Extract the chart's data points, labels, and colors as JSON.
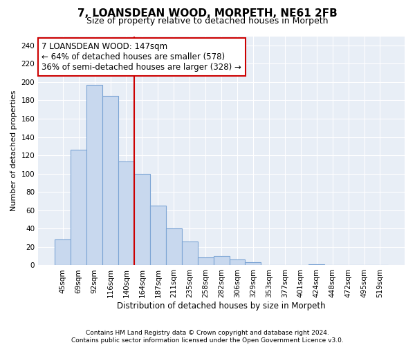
{
  "title": "7, LOANSDEAN WOOD, MORPETH, NE61 2FB",
  "subtitle": "Size of property relative to detached houses in Morpeth",
  "xlabel": "Distribution of detached houses by size in Morpeth",
  "ylabel": "Number of detached properties",
  "categories": [
    "45sqm",
    "69sqm",
    "92sqm",
    "116sqm",
    "140sqm",
    "164sqm",
    "187sqm",
    "211sqm",
    "235sqm",
    "258sqm",
    "282sqm",
    "306sqm",
    "329sqm",
    "353sqm",
    "377sqm",
    "401sqm",
    "424sqm",
    "448sqm",
    "472sqm",
    "495sqm",
    "519sqm"
  ],
  "values": [
    28,
    126,
    197,
    185,
    113,
    100,
    65,
    40,
    26,
    9,
    10,
    6,
    3,
    0,
    0,
    0,
    1,
    0,
    0,
    0,
    0
  ],
  "bar_color": "#c8d8ee",
  "bar_edge_color": "#7ba4d4",
  "vline_x": 4.5,
  "annotation_line1": "7 LOANSDEAN WOOD: 147sqm",
  "annotation_line2": "← 64% of detached houses are smaller (578)",
  "annotation_line3": "36% of semi-detached houses are larger (328) →",
  "annotation_box_facecolor": "#ffffff",
  "annotation_box_edgecolor": "#cc0000",
  "vline_color": "#cc0000",
  "plot_bg_color": "#e8eef6",
  "grid_color": "#ffffff",
  "fig_bg_color": "#ffffff",
  "footer1": "Contains HM Land Registry data © Crown copyright and database right 2024.",
  "footer2": "Contains public sector information licensed under the Open Government Licence v3.0.",
  "ylim": [
    0,
    250
  ],
  "ytick_step": 20,
  "title_fontsize": 11,
  "subtitle_fontsize": 9,
  "xlabel_fontsize": 8.5,
  "ylabel_fontsize": 8,
  "tick_fontsize": 7.5,
  "annotation_fontsize": 8.5,
  "footer_fontsize": 6.5
}
